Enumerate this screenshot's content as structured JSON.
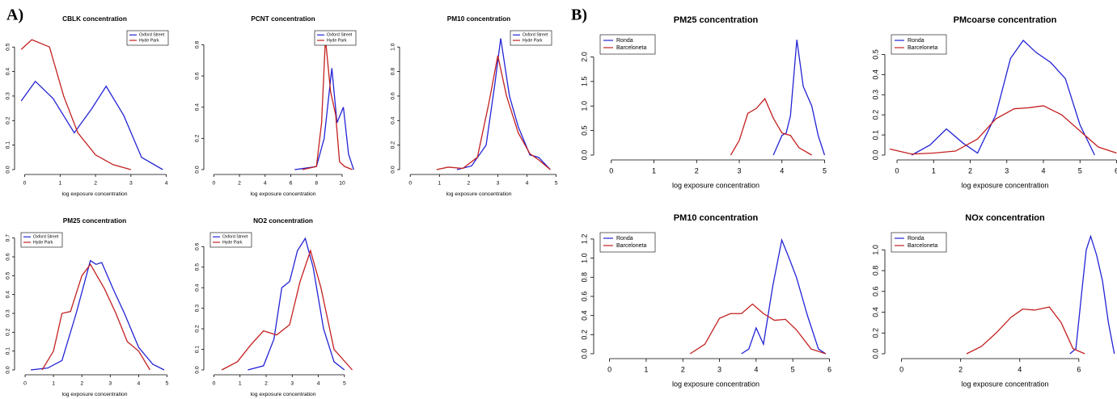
{
  "panels": [
    "A)",
    "B)"
  ],
  "chart_data": [
    {
      "type": "line",
      "title": "CBLK concentration",
      "xlabel": "log exposure concentration",
      "legend": "top-right",
      "xlim": [
        -0.15,
        4.1
      ],
      "ylim": [
        0,
        0.56
      ],
      "xticks": [
        0,
        1,
        2,
        3,
        4
      ],
      "yticks": [
        {
          "value": 0,
          "label": "0.0"
        },
        0.1,
        0.2,
        0.3,
        0.4,
        0.5
      ],
      "series": [
        {
          "name": "Oxford Street",
          "color": "#2323d6",
          "x": [
            -0.1,
            0.3,
            0.8,
            1.4,
            1.9,
            2.3,
            2.8,
            3.3,
            3.9
          ],
          "values": [
            0.28,
            0.36,
            0.29,
            0.15,
            0.25,
            0.34,
            0.22,
            0.05,
            0
          ]
        },
        {
          "name": "Hyde Park",
          "color": "#c42020",
          "x": [
            -0.1,
            0.2,
            0.7,
            1.1,
            1.5,
            2.0,
            2.5,
            3.0
          ],
          "values": [
            0.49,
            0.53,
            0.5,
            0.3,
            0.15,
            0.06,
            0.02,
            0
          ]
        }
      ]
    },
    {
      "type": "line",
      "title": "PCNT concentration",
      "xlabel": "log exposure concentration",
      "legend": "top-right",
      "xlim": [
        -0.4,
        11.2
      ],
      "ylim": [
        0,
        0.88
      ],
      "xticks": [
        0,
        2,
        4,
        6,
        8,
        10
      ],
      "yticks": [
        {
          "value": 0,
          "label": "0.0"
        },
        0.2,
        0.4,
        0.6,
        0.8
      ],
      "series": [
        {
          "name": "Oxford Street",
          "color": "#2323d6",
          "x": [
            6.3,
            7.2,
            8.0,
            8.6,
            9.2,
            9.6,
            10.1,
            10.5,
            10.9
          ],
          "values": [
            0,
            0.01,
            0.02,
            0.2,
            0.65,
            0.3,
            0.4,
            0.1,
            0
          ]
        },
        {
          "name": "Hyde Park",
          "color": "#c42020",
          "x": [
            6.9,
            8.0,
            8.4,
            8.7,
            9.1,
            9.5,
            9.8,
            10.2,
            10.8
          ],
          "values": [
            0,
            0.02,
            0.3,
            0.84,
            0.5,
            0.35,
            0.05,
            0.02,
            0
          ]
        }
      ]
    },
    {
      "type": "line",
      "title": "PM10 concentration",
      "xlabel": "log exposure concentration",
      "legend": "top-right",
      "xlim": [
        -0.2,
        4.9
      ],
      "ylim": [
        0,
        1.12
      ],
      "xticks": [
        0,
        1,
        2,
        3,
        4,
        5
      ],
      "yticks": [
        {
          "value": 0,
          "label": "0.0"
        },
        0.2,
        0.4,
        0.6,
        0.8,
        {
          "value": 1,
          "label": "1.0"
        }
      ],
      "series": [
        {
          "name": "Oxford Street",
          "color": "#2323d6",
          "x": [
            1.6,
            2.1,
            2.6,
            2.9,
            3.1,
            3.4,
            3.7,
            4.1,
            4.4,
            4.8
          ],
          "values": [
            0,
            0.03,
            0.2,
            0.7,
            1.07,
            0.6,
            0.35,
            0.12,
            0.1,
            0
          ]
        },
        {
          "name": "Hyde Park",
          "color": "#c42020",
          "x": [
            0.9,
            1.3,
            1.8,
            2.3,
            2.7,
            3.0,
            3.3,
            3.7,
            4.1,
            4.4,
            4.8
          ],
          "values": [
            0,
            0.02,
            0.01,
            0.1,
            0.55,
            0.93,
            0.6,
            0.3,
            0.13,
            0.08,
            0
          ]
        }
      ]
    },
    {
      "type": "line",
      "title": "PM25 concentration",
      "xlabel": "log exposure concentration",
      "legend": "top-left",
      "xlim": [
        -0.2,
        5.1
      ],
      "ylim": [
        0,
        0.72
      ],
      "xticks": [
        0,
        1,
        2,
        3,
        4,
        5
      ],
      "yticks": [
        {
          "value": 0,
          "label": "0.0"
        },
        0.1,
        0.2,
        0.3,
        0.4,
        0.5,
        0.6,
        0.7
      ],
      "series": [
        {
          "name": "Oxford Street",
          "color": "#2323d6",
          "x": [
            0.2,
            0.8,
            1.3,
            1.8,
            2.3,
            2.5,
            2.7,
            3.1,
            3.5,
            4.0,
            4.5,
            4.9
          ],
          "values": [
            0,
            0.01,
            0.05,
            0.3,
            0.58,
            0.56,
            0.57,
            0.43,
            0.3,
            0.12,
            0.03,
            0
          ]
        },
        {
          "name": "Hyde Park",
          "color": "#c42020",
          "x": [
            0.6,
            1.0,
            1.3,
            1.6,
            2.0,
            2.3,
            2.8,
            3.2,
            3.6,
            4.0,
            4.4
          ],
          "values": [
            0,
            0.1,
            0.3,
            0.31,
            0.5,
            0.56,
            0.43,
            0.3,
            0.15,
            0.1,
            0
          ]
        }
      ]
    },
    {
      "type": "line",
      "title": "NO2 concentration",
      "xlabel": "log exposure concentration",
      "legend": "top-left",
      "xlim": [
        -0.2,
        5.5
      ],
      "ylim": [
        0,
        0.66
      ],
      "xticks": [
        0,
        1,
        2,
        3,
        4,
        5
      ],
      "yticks": [
        {
          "value": 0,
          "label": "0.0"
        },
        0.1,
        0.2,
        0.3,
        0.4,
        0.5,
        0.6
      ],
      "series": [
        {
          "name": "Oxford Street",
          "color": "#2323d6",
          "x": [
            1.3,
            1.9,
            2.3,
            2.6,
            2.9,
            3.2,
            3.5,
            3.8,
            4.2,
            4.6,
            5.0
          ],
          "values": [
            0,
            0.02,
            0.15,
            0.4,
            0.43,
            0.58,
            0.64,
            0.5,
            0.2,
            0.04,
            0
          ]
        },
        {
          "name": "Hyde Park",
          "color": "#c42020",
          "x": [
            0.3,
            0.9,
            1.4,
            1.9,
            2.4,
            2.9,
            3.3,
            3.7,
            4.1,
            4.6,
            5.3
          ],
          "values": [
            0,
            0.04,
            0.12,
            0.19,
            0.17,
            0.22,
            0.43,
            0.58,
            0.4,
            0.1,
            0
          ]
        }
      ]
    },
    {
      "type": "line",
      "title": "PM25 concentration",
      "xlabel": "log exposure concentration",
      "legend": "top-left",
      "xlim": [
        -0.3,
        5.2
      ],
      "ylim": [
        0,
        2.42
      ],
      "xticks": [
        0,
        1,
        2,
        3,
        4,
        5
      ],
      "yticks": [
        {
          "value": 0,
          "label": "0.0"
        },
        0.5,
        {
          "value": 1,
          "label": "1.0"
        },
        1.5,
        {
          "value": 2,
          "label": "2.0"
        }
      ],
      "series": [
        {
          "name": "Ronda",
          "color": "#2323d6",
          "x": [
            3.8,
            4.0,
            4.1,
            4.2,
            4.35,
            4.5,
            4.7,
            4.85,
            5.0
          ],
          "values": [
            0,
            0.4,
            0.45,
            0.8,
            2.35,
            1.4,
            1.0,
            0.4,
            0
          ]
        },
        {
          "name": "Barceloneta",
          "color": "#c42020",
          "x": [
            2.8,
            3.0,
            3.2,
            3.4,
            3.6,
            3.8,
            4.0,
            4.2,
            4.4,
            4.7
          ],
          "values": [
            0,
            0.3,
            0.85,
            0.95,
            1.15,
            0.75,
            0.45,
            0.4,
            0.15,
            0
          ]
        }
      ]
    },
    {
      "type": "line",
      "title": "PMcoarse concentration",
      "xlabel": "log exposure concentration",
      "legend": "top-left",
      "xlim": [
        -0.2,
        6.1
      ],
      "ylim": [
        0,
        0.59
      ],
      "xticks": [
        0,
        1,
        2,
        3,
        4,
        5,
        6
      ],
      "yticks": [
        {
          "value": 0,
          "label": "0.0"
        },
        0.1,
        0.2,
        0.3,
        0.4,
        0.5
      ],
      "series": [
        {
          "name": "Ronda",
          "color": "#2323d6",
          "x": [
            0.4,
            0.9,
            1.35,
            1.8,
            2.2,
            2.7,
            3.1,
            3.45,
            3.8,
            4.2,
            4.6,
            5.0,
            5.4
          ],
          "values": [
            0,
            0.05,
            0.13,
            0.06,
            0.01,
            0.2,
            0.48,
            0.57,
            0.51,
            0.46,
            0.38,
            0.15,
            0
          ]
        },
        {
          "name": "Barceloneta",
          "color": "#c42020",
          "x": [
            -0.2,
            0.4,
            1.0,
            1.6,
            2.2,
            2.7,
            3.2,
            3.6,
            4.0,
            4.5,
            5.0,
            5.5,
            6.0
          ],
          "values": [
            0.03,
            0.005,
            0.01,
            0.02,
            0.08,
            0.18,
            0.23,
            0.235,
            0.245,
            0.2,
            0.12,
            0.04,
            0.01
          ]
        }
      ]
    },
    {
      "type": "line",
      "title": "PM10 concentration",
      "xlabel": "log exposure concentration",
      "legend": "top-left",
      "xlim": [
        -0.3,
        6.1
      ],
      "ylim": [
        0,
        1.25
      ],
      "xticks": [
        0,
        1,
        2,
        3,
        4,
        5,
        6
      ],
      "yticks": [
        {
          "value": 0,
          "label": "0.0"
        },
        0.2,
        0.4,
        0.6,
        0.8,
        {
          "value": 1,
          "label": "1.0"
        },
        1.2
      ],
      "series": [
        {
          "name": "Ronda",
          "color": "#2323d6",
          "x": [
            3.6,
            3.8,
            4.0,
            4.2,
            4.45,
            4.7,
            4.9,
            5.1,
            5.4,
            5.7,
            5.9
          ],
          "values": [
            0,
            0.05,
            0.27,
            0.1,
            0.7,
            1.19,
            1.0,
            0.8,
            0.4,
            0.05,
            0
          ]
        },
        {
          "name": "Barceloneta",
          "color": "#c42020",
          "x": [
            2.2,
            2.6,
            3.0,
            3.3,
            3.6,
            3.9,
            4.2,
            4.5,
            4.8,
            5.1,
            5.5,
            5.9
          ],
          "values": [
            0,
            0.1,
            0.37,
            0.42,
            0.42,
            0.52,
            0.42,
            0.35,
            0.36,
            0.25,
            0.05,
            0
          ]
        }
      ]
    },
    {
      "type": "line",
      "title": "NOx concentration",
      "xlabel": "log exposure concentration",
      "legend": "top-left",
      "xlim": [
        -0.4,
        7.4
      ],
      "ylim": [
        0,
        1.15
      ],
      "xticks": [
        0,
        2,
        4,
        6
      ],
      "yticks": [
        {
          "value": 0,
          "label": "0.0"
        },
        0.2,
        0.4,
        0.6,
        0.8,
        {
          "value": 1,
          "label": "1.0"
        }
      ],
      "series": [
        {
          "name": "Ronda",
          "color": "#2323d6",
          "x": [
            5.7,
            5.9,
            6.1,
            6.25,
            6.4,
            6.6,
            6.8,
            7.0,
            7.2
          ],
          "values": [
            0,
            0.05,
            0.6,
            1.0,
            1.13,
            0.95,
            0.7,
            0.3,
            0
          ]
        },
        {
          "name": "Barceloneta",
          "color": "#c42020",
          "x": [
            2.2,
            2.7,
            3.2,
            3.7,
            4.1,
            4.5,
            5.0,
            5.4,
            5.8,
            6.2
          ],
          "values": [
            0,
            0.07,
            0.2,
            0.35,
            0.43,
            0.42,
            0.45,
            0.3,
            0.05,
            0
          ]
        }
      ]
    }
  ]
}
